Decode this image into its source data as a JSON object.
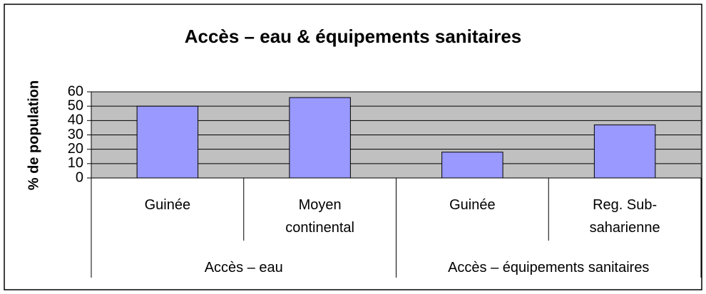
{
  "chart_data": {
    "type": "bar",
    "title": "Accès – eau & équipements sanitaires",
    "y_label": "% de population",
    "categories": [
      "Guinée",
      "Moyen continental",
      "Guinée",
      "Reg. Sub-saharienne"
    ],
    "groups": [
      "Accès – eau",
      "Accès – équipements sanitaires"
    ],
    "values": [
      50,
      56,
      18,
      37
    ],
    "color": "#9999ff",
    "ylim": [
      0,
      60
    ],
    "yticks": [
      0,
      10,
      20,
      30,
      40,
      50,
      60
    ],
    "grid": true
  }
}
